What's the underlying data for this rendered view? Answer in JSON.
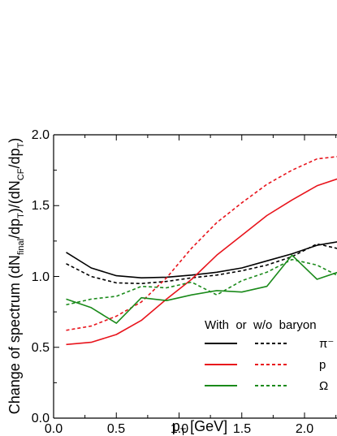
{
  "chart_data": {
    "type": "line",
    "xlabel": {
      "main": "p",
      "sub": "T",
      "rest": " [GeV]"
    },
    "ylabel": {
      "p1": "Change of spectrum (dN",
      "s1": "final",
      "p2": "/dp",
      "s2": "T",
      "p3": ")/(dN",
      "s3": "CF",
      "p4": "/dp",
      "s4": "T",
      "p5": ")"
    },
    "xlim": [
      0.0,
      2.3
    ],
    "ylim": [
      0.0,
      2.0
    ],
    "xticks": [
      "0.0",
      "0.5",
      "1.0",
      "1.5",
      "2.0"
    ],
    "yticks": [
      "0.0",
      "0.5",
      "1.0",
      "1.5",
      "2.0"
    ],
    "legend": {
      "header": "With  or  w/o  baryon",
      "labels": [
        "π⁻",
        "p",
        "Ω"
      ]
    },
    "colors": {
      "pion": "#000000",
      "proton": "#e8141c",
      "omega": "#1a8a1a"
    },
    "series": [
      {
        "particle": "pion",
        "style": "solid",
        "x": [
          0.1,
          0.3,
          0.5,
          0.7,
          0.9,
          1.1,
          1.3,
          1.5,
          1.7,
          1.9,
          2.1,
          2.3
        ],
        "y": [
          1.17,
          1.06,
          1.005,
          0.99,
          0.995,
          1.01,
          1.03,
          1.06,
          1.11,
          1.16,
          1.22,
          1.25
        ]
      },
      {
        "particle": "pion",
        "style": "dashed",
        "x": [
          0.1,
          0.3,
          0.5,
          0.7,
          0.9,
          1.1,
          1.3,
          1.5,
          1.7,
          1.9,
          2.1,
          2.3
        ],
        "y": [
          1.09,
          1.0,
          0.955,
          0.95,
          0.965,
          0.99,
          1.01,
          1.04,
          1.08,
          1.14,
          1.23,
          1.19
        ]
      },
      {
        "particle": "proton",
        "style": "solid",
        "x": [
          0.1,
          0.3,
          0.5,
          0.7,
          0.9,
          1.1,
          1.3,
          1.5,
          1.7,
          1.9,
          2.1,
          2.3
        ],
        "y": [
          0.52,
          0.535,
          0.59,
          0.69,
          0.84,
          0.98,
          1.15,
          1.29,
          1.43,
          1.54,
          1.64,
          1.7
        ]
      },
      {
        "particle": "proton",
        "style": "dashed",
        "x": [
          0.1,
          0.3,
          0.5,
          0.7,
          0.9,
          1.1,
          1.3,
          1.5,
          1.7,
          1.9,
          2.1,
          2.3
        ],
        "y": [
          0.62,
          0.65,
          0.72,
          0.82,
          0.99,
          1.2,
          1.38,
          1.52,
          1.65,
          1.75,
          1.83,
          1.85
        ]
      },
      {
        "particle": "omega",
        "style": "solid",
        "x": [
          0.1,
          0.3,
          0.5,
          0.7,
          0.9,
          1.1,
          1.3,
          1.5,
          1.7,
          1.9,
          2.1,
          2.3
        ],
        "y": [
          0.84,
          0.78,
          0.67,
          0.85,
          0.83,
          0.87,
          0.9,
          0.89,
          0.93,
          1.15,
          0.98,
          1.04
        ]
      },
      {
        "particle": "omega",
        "style": "dashed",
        "x": [
          0.1,
          0.3,
          0.5,
          0.7,
          0.9,
          1.1,
          1.3,
          1.5,
          1.7,
          1.9,
          2.1,
          2.3
        ],
        "y": [
          0.8,
          0.84,
          0.86,
          0.93,
          0.92,
          0.96,
          0.87,
          0.97,
          1.03,
          1.12,
          1.08,
          0.99
        ]
      }
    ]
  }
}
